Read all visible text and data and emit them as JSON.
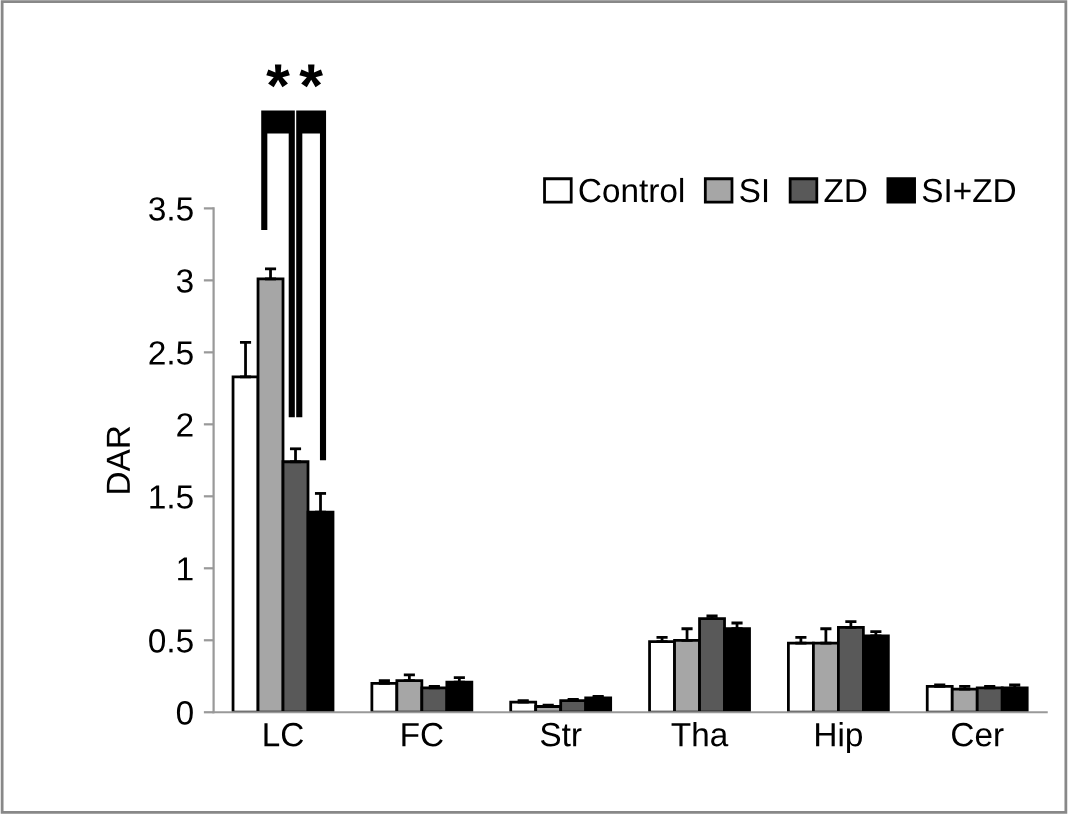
{
  "chart_data": {
    "type": "bar",
    "ylabel": "DAR",
    "categories": [
      "LC",
      "FC",
      "Str",
      "Tha",
      "Hip",
      "Cer"
    ],
    "series": [
      {
        "name": "Control",
        "color": "#ffffff",
        "values": [
          2.33,
          0.2,
          0.07,
          0.49,
          0.48,
          0.18
        ],
        "errors": [
          0.24,
          0.02,
          0.01,
          0.03,
          0.04,
          0.01
        ]
      },
      {
        "name": "SI",
        "color": "#a6a6a6",
        "values": [
          3.01,
          0.22,
          0.04,
          0.5,
          0.48,
          0.16
        ],
        "errors": [
          0.07,
          0.04,
          0.01,
          0.08,
          0.1,
          0.02
        ]
      },
      {
        "name": "ZD",
        "color": "#595959",
        "values": [
          1.74,
          0.17,
          0.08,
          0.65,
          0.59,
          0.17
        ],
        "errors": [
          0.09,
          0.01,
          0.01,
          0.02,
          0.04,
          0.01
        ]
      },
      {
        "name": "SI+ZD",
        "color": "#000000",
        "values": [
          1.39,
          0.21,
          0.1,
          0.58,
          0.53,
          0.17
        ],
        "errors": [
          0.13,
          0.03,
          0.01,
          0.04,
          0.03,
          0.02
        ]
      }
    ],
    "ylim": [
      0,
      3.5
    ],
    "yticks": [
      0,
      0.5,
      1,
      1.5,
      2,
      2.5,
      3,
      3.5
    ],
    "grid": false,
    "legend": "top right",
    "annotations": [
      "*",
      "*"
    ]
  }
}
